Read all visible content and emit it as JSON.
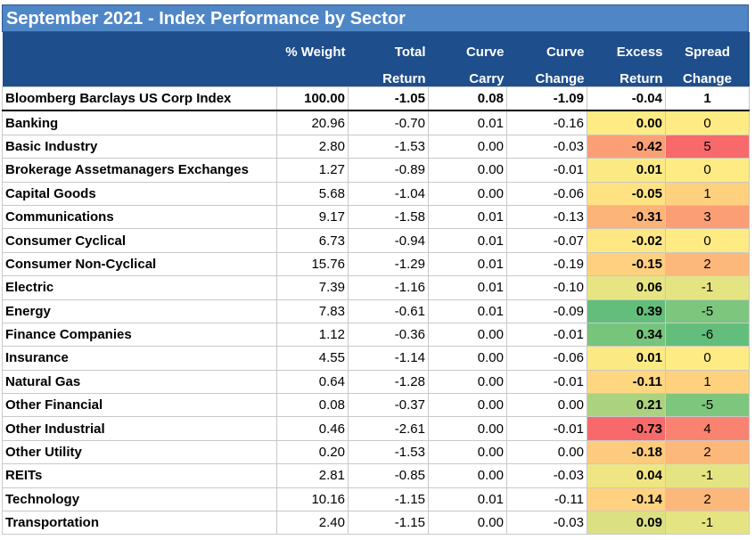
{
  "title": "September 2021 - Index Performance by Sector",
  "table": {
    "headers": [
      [
        "",
        "% Weight",
        "Total",
        "Curve",
        "Curve",
        "Excess",
        "Spread"
      ],
      [
        "",
        "",
        "Return",
        "Carry",
        "Change",
        "Return",
        "Change"
      ]
    ],
    "index_row": [
      "Bloomberg Barclays US Corp Index",
      "100.00",
      "-1.05",
      "0.08",
      "-1.09",
      "-0.04",
      "1"
    ],
    "rows": [
      [
        "Banking",
        "20.96",
        "-0.70",
        "0.01",
        "-0.16",
        "0.00",
        "0"
      ],
      [
        "Basic Industry",
        "2.80",
        "-1.53",
        "0.00",
        "-0.03",
        "-0.42",
        "5"
      ],
      [
        "Brokerage Assetmanagers Exchanges",
        "1.27",
        "-0.89",
        "0.00",
        "-0.01",
        "0.01",
        "0"
      ],
      [
        "Capital Goods",
        "5.68",
        "-1.04",
        "0.00",
        "-0.06",
        "-0.05",
        "1"
      ],
      [
        "Communications",
        "9.17",
        "-1.58",
        "0.01",
        "-0.13",
        "-0.31",
        "3"
      ],
      [
        "Consumer Cyclical",
        "6.73",
        "-0.94",
        "0.01",
        "-0.07",
        "-0.02",
        "0"
      ],
      [
        "Consumer Non-Cyclical",
        "15.76",
        "-1.29",
        "0.01",
        "-0.19",
        "-0.15",
        "2"
      ],
      [
        "Electric",
        "7.39",
        "-1.16",
        "0.01",
        "-0.10",
        "0.06",
        "-1"
      ],
      [
        "Energy",
        "7.83",
        "-0.61",
        "0.01",
        "-0.09",
        "0.39",
        "-5"
      ],
      [
        "Finance Companies",
        "1.12",
        "-0.36",
        "0.00",
        "-0.01",
        "0.34",
        "-6"
      ],
      [
        "Insurance",
        "4.55",
        "-1.14",
        "0.00",
        "-0.06",
        "0.01",
        "0"
      ],
      [
        "Natural Gas",
        "0.64",
        "-1.28",
        "0.00",
        "-0.01",
        "-0.11",
        "1"
      ],
      [
        "Other Financial",
        "0.08",
        "-0.37",
        "0.00",
        "0.00",
        "0.21",
        "-5"
      ],
      [
        "Other Industrial",
        "0.46",
        "-2.61",
        "0.00",
        "-0.01",
        "-0.73",
        "4"
      ],
      [
        "Other Utility",
        "0.20",
        "-1.53",
        "0.00",
        "0.00",
        "-0.18",
        "2"
      ],
      [
        "REITs",
        "2.81",
        "-0.85",
        "0.00",
        "-0.03",
        "0.04",
        "-1"
      ],
      [
        "Technology",
        "10.16",
        "-1.15",
        "0.01",
        "-0.11",
        "-0.14",
        "2"
      ],
      [
        "Transportation",
        "2.40",
        "-1.15",
        "0.00",
        "-0.03",
        "0.09",
        "-1"
      ]
    ]
  }
}
